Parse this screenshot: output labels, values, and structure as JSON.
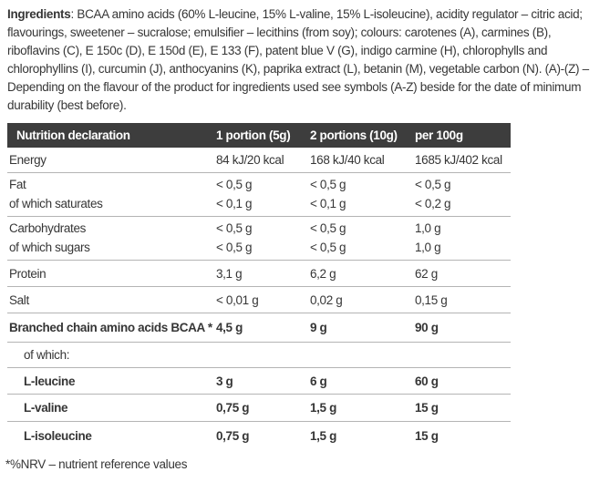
{
  "ingredients": {
    "label": "Ingredients",
    "text": ": BCAA amino acids (60% L-leucine, 15% L-valine, 15% L-isoleucine), acidity regulator – citric acid; flavourings, sweetener – sucralose; emulsifier – lecithins (from soy); colours: carotenes (A), carmines (B), riboflavins (C), E 150c (D), E 150d (E), E 133 (F), patent blue V (G), indigo carmine (H), chlorophylls and chlorophyllins (I), curcumin (J), anthocyanins (K), paprika extract (L), betanin (M), vegetable carbon (N). (A)-(Z) – Depending on the flavour of the product for ingredients used see symbols (A-Z) beside for the date of minimum durability (best before)."
  },
  "table": {
    "headers": [
      "Nutrition declaration",
      "1 portion (5g)",
      "2 portions (10g)",
      "per 100g"
    ],
    "rows": [
      {
        "label": "Energy",
        "v1": "84 kJ/20 kcal",
        "v2": "168 kJ/40 kcal",
        "v3": "1685 kJ/402 kcal"
      },
      {
        "label": "Fat",
        "v1": "< 0,5 g",
        "v2": "< 0,5 g",
        "v3": "< 0,5 g"
      },
      {
        "label": "of which saturates",
        "v1": "< 0,1 g",
        "v2": "< 0,1 g",
        "v3": "< 0,2 g"
      },
      {
        "label": "Carbohydrates",
        "v1": "< 0,5 g",
        "v2": "< 0,5 g",
        "v3": "1,0 g"
      },
      {
        "label": "of which sugars",
        "v1": "< 0,5 g",
        "v2": "< 0,5 g",
        "v3": "1,0 g"
      },
      {
        "label": "Protein",
        "v1": "3,1 g",
        "v2": "6,2 g",
        "v3": "62 g"
      },
      {
        "label": "Salt",
        "v1": "< 0,01 g",
        "v2": "0,02 g",
        "v3": "0,15 g"
      },
      {
        "label": "Branched chain amino acids BCAA *",
        "v1": "4,5 g",
        "v2": "9 g",
        "v3": "90 g"
      },
      {
        "label": "of which:",
        "v1": "",
        "v2": "",
        "v3": ""
      },
      {
        "label": "L-leucine",
        "v1": "3 g",
        "v2": "6 g",
        "v3": "60 g"
      },
      {
        "label": "L-valine",
        "v1": "0,75 g",
        "v2": "1,5 g",
        "v3": "15 g"
      },
      {
        "label": "L-isoleucine",
        "v1": "0,75 g",
        "v2": "1,5 g",
        "v3": "15 g"
      }
    ]
  },
  "footnote": "*%NRV – nutrient reference values",
  "colors": {
    "header_bg": "#3d3d3d",
    "header_text": "#ffffff",
    "body_text": "#363636",
    "rule": "#b4b4b4",
    "background": "#ffffff"
  }
}
